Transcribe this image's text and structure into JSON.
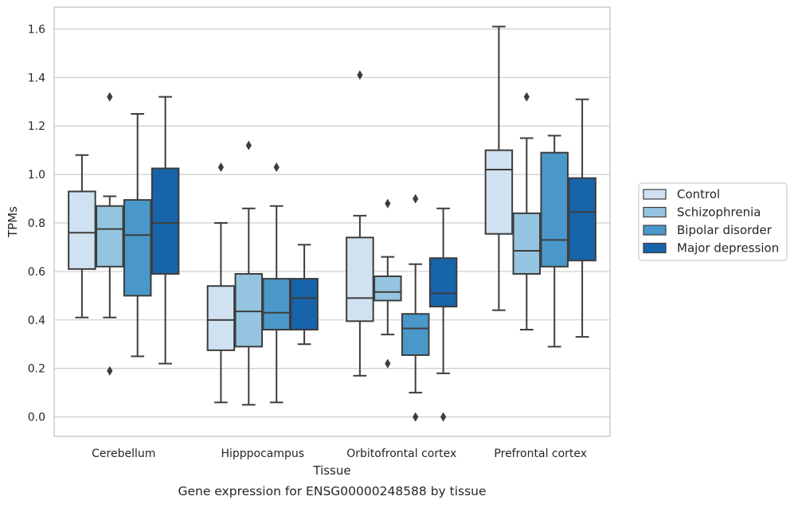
{
  "chart_data": {
    "type": "box",
    "caption": "Gene expression for ENSG00000248588 by tissue",
    "xlabel": "Tissue",
    "ylabel": "TPMs",
    "ylim": [
      -0.08,
      1.69
    ],
    "yticks": [
      "0.0",
      "0.2",
      "0.4",
      "0.6",
      "0.8",
      "1.0",
      "1.2",
      "1.4",
      "1.6"
    ],
    "grid": "horizontal",
    "legend_position": "right",
    "categories": [
      "Cerebellum",
      "Hipppocampus",
      "Orbitofrontal cortex",
      "Prefrontal cortex"
    ],
    "series": [
      {
        "name": "Control",
        "color": "#d0e1f2",
        "boxes": [
          {
            "whislo": 0.41,
            "q1": 0.61,
            "med": 0.76,
            "q3": 0.93,
            "whishi": 1.08,
            "fliers": []
          },
          {
            "whislo": 0.06,
            "q1": 0.275,
            "med": 0.4,
            "q3": 0.54,
            "whishi": 0.8,
            "fliers": [
              1.03
            ]
          },
          {
            "whislo": 0.17,
            "q1": 0.395,
            "med": 0.49,
            "q3": 0.74,
            "whishi": 0.83,
            "fliers": [
              1.41
            ]
          },
          {
            "whislo": 0.44,
            "q1": 0.755,
            "med": 1.02,
            "q3": 1.1,
            "whishi": 1.61,
            "fliers": []
          }
        ]
      },
      {
        "name": "Schizophrenia",
        "color": "#94c4df",
        "boxes": [
          {
            "whislo": 0.41,
            "q1": 0.62,
            "med": 0.775,
            "q3": 0.87,
            "whishi": 0.91,
            "fliers": [
              0.19,
              1.32
            ]
          },
          {
            "whislo": 0.05,
            "q1": 0.29,
            "med": 0.435,
            "q3": 0.59,
            "whishi": 0.86,
            "fliers": [
              1.12
            ]
          },
          {
            "whislo": 0.34,
            "q1": 0.48,
            "med": 0.515,
            "q3": 0.58,
            "whishi": 0.66,
            "fliers": [
              0.22,
              0.88
            ]
          },
          {
            "whislo": 0.36,
            "q1": 0.59,
            "med": 0.685,
            "q3": 0.84,
            "whishi": 1.15,
            "fliers": [
              1.32
            ]
          }
        ]
      },
      {
        "name": "Bipolar disorder",
        "color": "#4a98c9",
        "boxes": [
          {
            "whislo": 0.25,
            "q1": 0.5,
            "med": 0.75,
            "q3": 0.895,
            "whishi": 1.25,
            "fliers": []
          },
          {
            "whislo": 0.06,
            "q1": 0.36,
            "med": 0.43,
            "q3": 0.57,
            "whishi": 0.87,
            "fliers": [
              1.03
            ]
          },
          {
            "whislo": 0.1,
            "q1": 0.255,
            "med": 0.365,
            "q3": 0.425,
            "whishi": 0.63,
            "fliers": [
              0.0,
              0.9
            ]
          },
          {
            "whislo": 0.29,
            "q1": 0.62,
            "med": 0.73,
            "q3": 1.09,
            "whishi": 1.16,
            "fliers": []
          }
        ]
      },
      {
        "name": "Major depression",
        "color": "#1764ab",
        "boxes": [
          {
            "whislo": 0.22,
            "q1": 0.59,
            "med": 0.8,
            "q3": 1.025,
            "whishi": 1.32,
            "fliers": []
          },
          {
            "whislo": 0.3,
            "q1": 0.36,
            "med": 0.49,
            "q3": 0.57,
            "whishi": 0.71,
            "fliers": []
          },
          {
            "whislo": 0.18,
            "q1": 0.455,
            "med": 0.51,
            "q3": 0.655,
            "whishi": 0.86,
            "fliers": [
              0.0
            ]
          },
          {
            "whislo": 0.33,
            "q1": 0.645,
            "med": 0.845,
            "q3": 0.985,
            "whishi": 1.31,
            "fliers": []
          }
        ]
      }
    ]
  }
}
